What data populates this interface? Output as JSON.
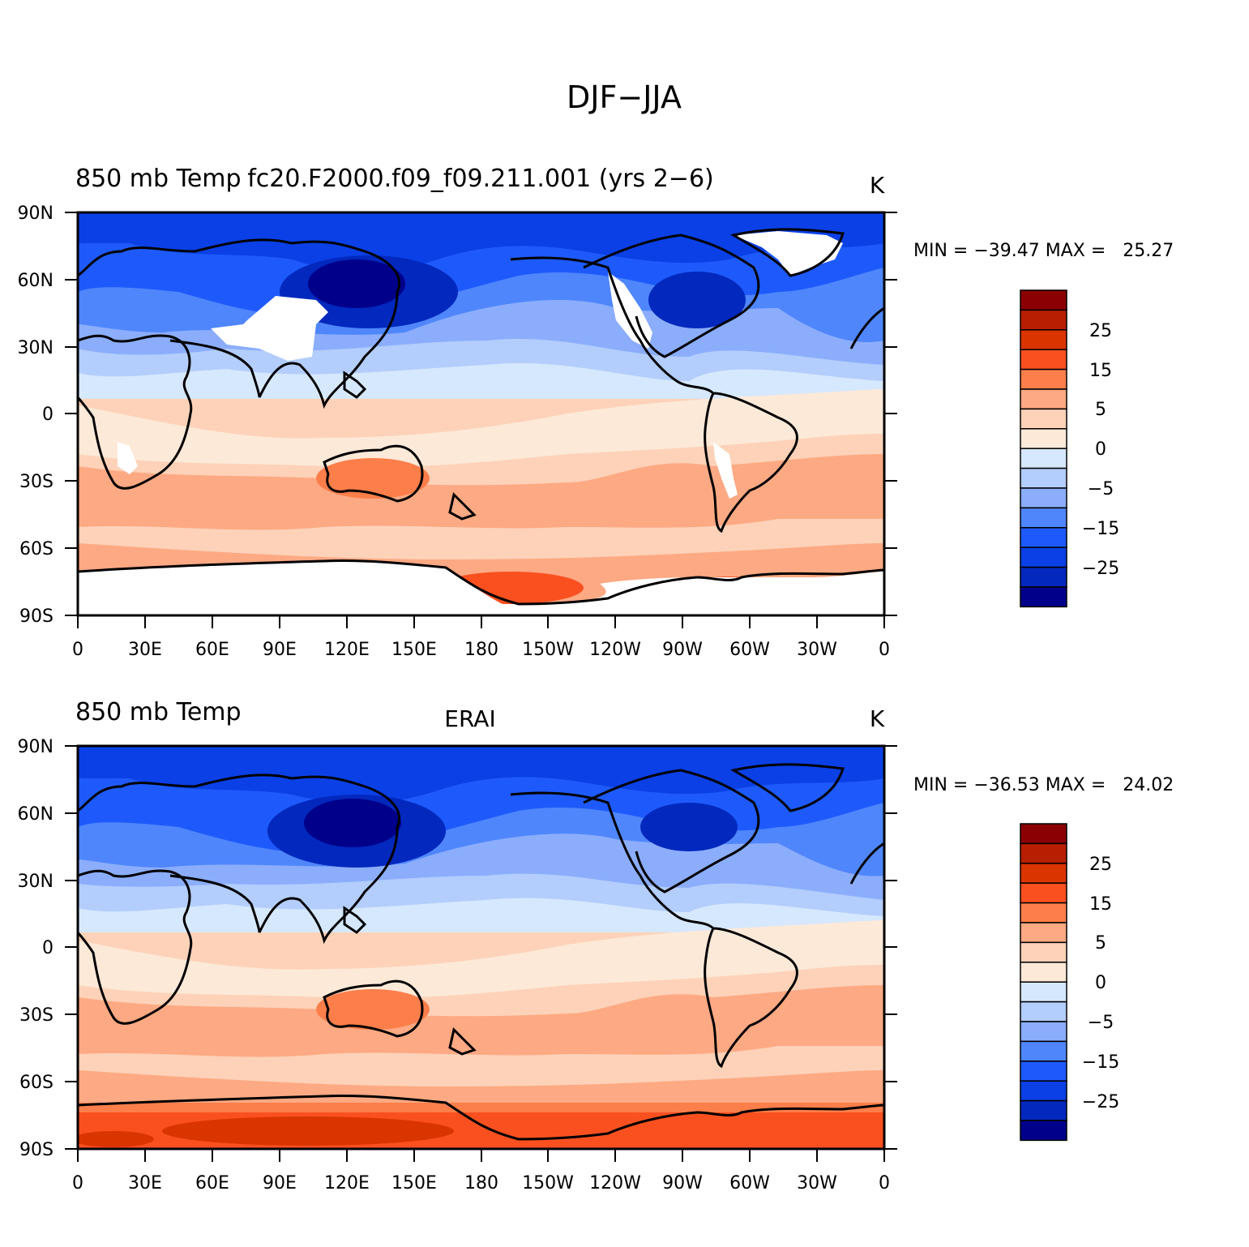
{
  "figure": {
    "title": "DJF−JJA"
  },
  "panels": [
    {
      "left_title": "850 mb Temp",
      "center_title": "fc20.F2000.f09_f09.211.001 (yrs 2−6)",
      "units": "K",
      "stats": "MIN = −39.47 MAX =   25.27"
    },
    {
      "left_title": "850 mb Temp",
      "center_title": "ERAI",
      "units": "K",
      "stats": "MIN = −36.53 MAX =   24.02"
    }
  ],
  "axes": {
    "lat_ticks": [
      "90N",
      "60N",
      "30N",
      "0",
      "30S",
      "60S",
      "90S"
    ],
    "lon_ticks": [
      "0",
      "30E",
      "60E",
      "90E",
      "120E",
      "150E",
      "180",
      "150W",
      "120W",
      "90W",
      "60W",
      "30W",
      "0"
    ]
  },
  "colorbar": {
    "colors": [
      "#8b0000",
      "#b81f00",
      "#da3400",
      "#fa5020",
      "#fc7e4a",
      "#fda983",
      "#fdd2b8",
      "#fde9d8",
      "#d6e8fd",
      "#b3cdfc",
      "#8badfc",
      "#4f86fc",
      "#1e5afb",
      "#0a40e6",
      "#0228bd",
      "#00008b"
    ],
    "labels": [
      "25",
      "15",
      "5",
      "0",
      "−5",
      "−15",
      "−25"
    ]
  },
  "chart_data": [
    {
      "type": "heatmap",
      "title": "fc20.F2000.f09_f09.211.001 (yrs 2−6)",
      "variable": "850 mb Temp",
      "units": "K",
      "min": -39.47,
      "max": 25.27,
      "lat_range": [
        -90,
        90
      ],
      "lon_range": [
        0,
        360
      ],
      "contour_levels": [
        -35,
        -30,
        -25,
        -20,
        -15,
        -10,
        -5,
        -2,
        0,
        2,
        5,
        10,
        15,
        20,
        25
      ],
      "missing_regions": [
        "Greenland",
        "Tibetan Plateau",
        "Rocky Mountains",
        "Andes",
        "Antarctica",
        "southern Africa highlands"
      ]
    },
    {
      "type": "heatmap",
      "title": "ERAI",
      "variable": "850 mb Temp",
      "units": "K",
      "min": -36.53,
      "max": 24.02,
      "lat_range": [
        -90,
        90
      ],
      "lon_range": [
        0,
        360
      ],
      "contour_levels": [
        -35,
        -30,
        -25,
        -20,
        -15,
        -10,
        -5,
        -2,
        0,
        2,
        5,
        10,
        15,
        20,
        25
      ]
    }
  ]
}
